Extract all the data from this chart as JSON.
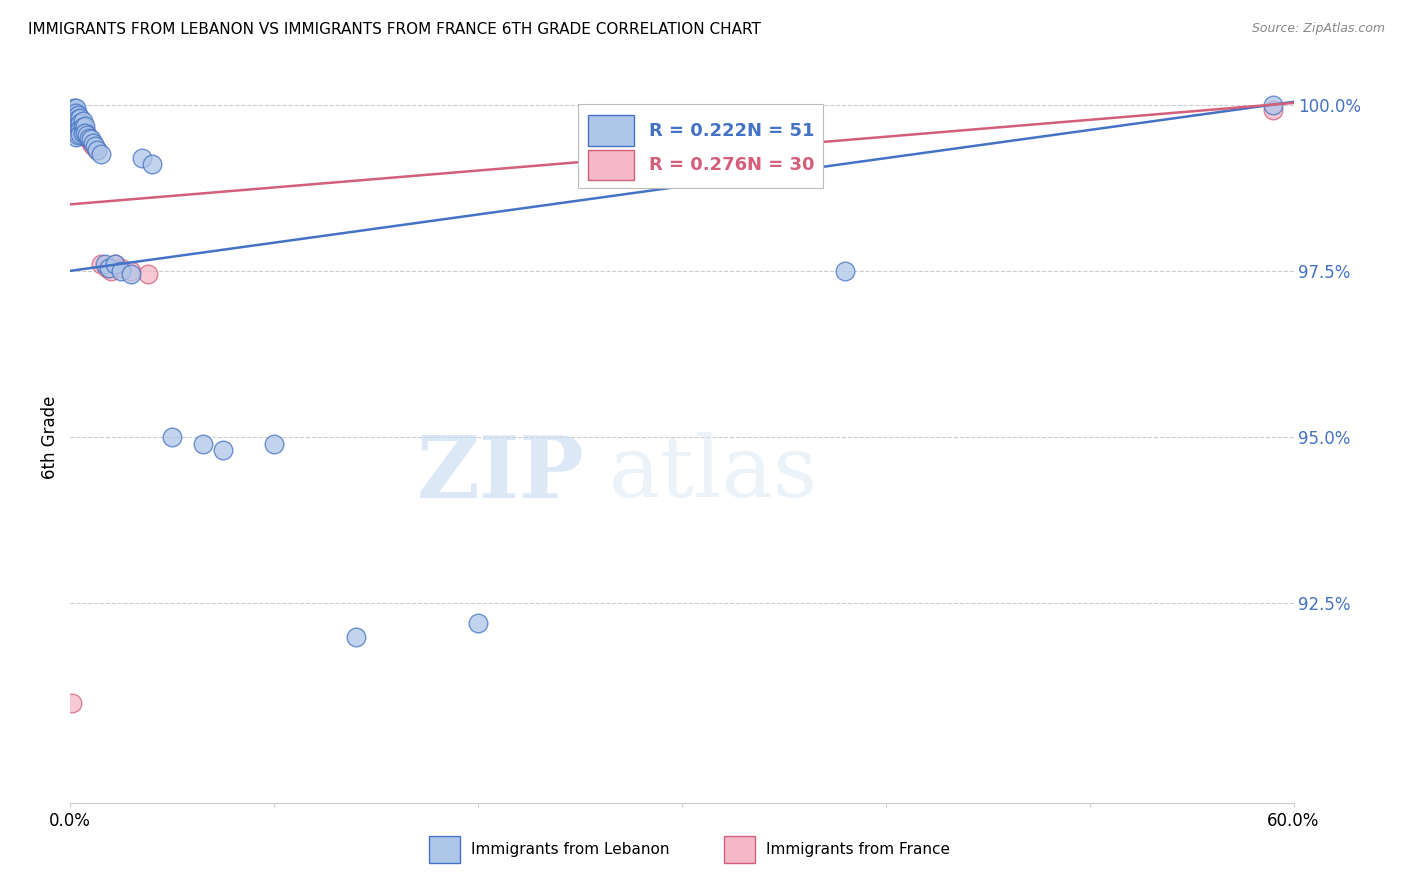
{
  "title": "IMMIGRANTS FROM LEBANON VS IMMIGRANTS FROM FRANCE 6TH GRADE CORRELATION CHART",
  "source": "Source: ZipAtlas.com",
  "ylabel": "6th Grade",
  "xlim": [
    0.0,
    0.6
  ],
  "ylim": [
    0.895,
    1.005
  ],
  "xticks": [
    0.0,
    0.1,
    0.2,
    0.3,
    0.4,
    0.5,
    0.6
  ],
  "xticklabels": [
    "0.0%",
    "",
    "",
    "",
    "",
    "",
    "60.0%"
  ],
  "yticks": [
    0.925,
    0.95,
    0.975,
    1.0
  ],
  "yticklabels": [
    "92.5%",
    "95.0%",
    "97.5%",
    "100.0%"
  ],
  "lebanon_color": "#aec6e8",
  "france_color": "#f4b8c8",
  "lebanon_line_color": "#4472c4",
  "france_line_color": "#d45f7a",
  "legend_R_lebanon": "R = 0.222",
  "legend_N_lebanon": "N = 51",
  "legend_R_france": "R = 0.276",
  "legend_N_france": "N = 30",
  "watermark_zip": "ZIP",
  "watermark_atlas": "atlas",
  "lebanon_x": [
    0.001,
    0.001,
    0.001,
    0.002,
    0.002,
    0.002,
    0.002,
    0.002,
    0.003,
    0.003,
    0.003,
    0.003,
    0.003,
    0.003,
    0.003,
    0.004,
    0.004,
    0.004,
    0.004,
    0.004,
    0.005,
    0.005,
    0.005,
    0.005,
    0.006,
    0.006,
    0.006,
    0.007,
    0.007,
    0.008,
    0.009,
    0.01,
    0.011,
    0.012,
    0.013,
    0.015,
    0.017,
    0.019,
    0.022,
    0.025,
    0.03,
    0.035,
    0.04,
    0.05,
    0.065,
    0.075,
    0.1,
    0.14,
    0.2,
    0.38,
    0.59
  ],
  "lebanon_y": [
    0.999,
    0.9985,
    0.998,
    0.9995,
    0.9988,
    0.9982,
    0.9975,
    0.997,
    0.9995,
    0.9988,
    0.9982,
    0.9975,
    0.9968,
    0.996,
    0.9952,
    0.9985,
    0.9978,
    0.997,
    0.9962,
    0.9955,
    0.998,
    0.9972,
    0.9964,
    0.9956,
    0.9975,
    0.9967,
    0.9958,
    0.9968,
    0.9958,
    0.9955,
    0.995,
    0.9948,
    0.9942,
    0.9938,
    0.9932,
    0.9925,
    0.976,
    0.9755,
    0.976,
    0.975,
    0.9745,
    0.992,
    0.991,
    0.95,
    0.949,
    0.948,
    0.949,
    0.92,
    0.922,
    0.975,
    1.0
  ],
  "france_x": [
    0.001,
    0.002,
    0.002,
    0.002,
    0.003,
    0.003,
    0.003,
    0.004,
    0.004,
    0.004,
    0.005,
    0.005,
    0.006,
    0.006,
    0.007,
    0.007,
    0.008,
    0.009,
    0.01,
    0.011,
    0.013,
    0.015,
    0.018,
    0.02,
    0.022,
    0.025,
    0.03,
    0.038,
    0.59,
    0.001
  ],
  "france_y": [
    0.9992,
    0.9988,
    0.9982,
    0.9975,
    0.9985,
    0.9978,
    0.997,
    0.998,
    0.9972,
    0.9964,
    0.9975,
    0.9965,
    0.9968,
    0.9958,
    0.9962,
    0.9952,
    0.9955,
    0.9948,
    0.9942,
    0.9938,
    0.9932,
    0.976,
    0.9755,
    0.975,
    0.976,
    0.9755,
    0.975,
    0.9745,
    0.9992,
    0.91
  ]
}
